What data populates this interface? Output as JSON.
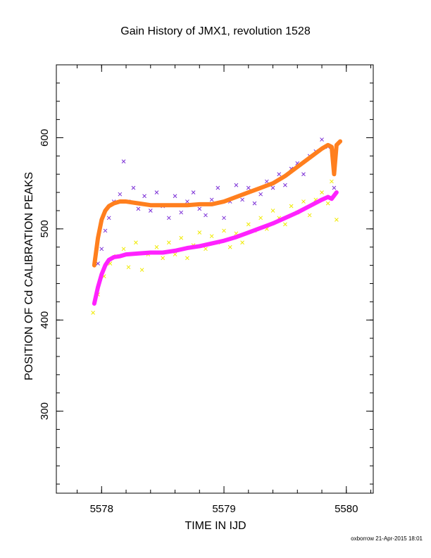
{
  "footer": "oxborrow 21-Apr-2015 18:01",
  "chart_data": {
    "type": "scatter",
    "title": "Gain History of JMX1, revolution 1528",
    "xlabel": "TIME IN IJD",
    "ylabel": "POSITION OF Cd CALIBRATION PEAKS",
    "xlim": [
      5577.63,
      5580.22
    ],
    "ylim": [
      210,
      680
    ],
    "x_ticks": [
      5578,
      5579,
      5580
    ],
    "y_ticks": [
      300,
      400,
      500,
      600
    ],
    "grid": false,
    "series": [
      {
        "marker": "x",
        "color": "#7b2fd6",
        "points": [
          [
            5577.97,
            462
          ],
          [
            5578.0,
            478
          ],
          [
            5578.03,
            498
          ],
          [
            5578.06,
            512
          ],
          [
            5578.1,
            530
          ],
          [
            5578.15,
            538
          ],
          [
            5578.18,
            574
          ],
          [
            5578.22,
            530
          ],
          [
            5578.26,
            545
          ],
          [
            5578.3,
            522
          ],
          [
            5578.35,
            536
          ],
          [
            5578.4,
            520
          ],
          [
            5578.45,
            540
          ],
          [
            5578.5,
            525
          ],
          [
            5578.55,
            512
          ],
          [
            5578.6,
            536
          ],
          [
            5578.65,
            518
          ],
          [
            5578.7,
            530
          ],
          [
            5578.75,
            540
          ],
          [
            5578.8,
            522
          ],
          [
            5578.85,
            515
          ],
          [
            5578.9,
            532
          ],
          [
            5578.95,
            545
          ],
          [
            5579.0,
            512
          ],
          [
            5579.05,
            530
          ],
          [
            5579.1,
            548
          ],
          [
            5579.15,
            532
          ],
          [
            5579.2,
            545
          ],
          [
            5579.25,
            528
          ],
          [
            5579.3,
            538
          ],
          [
            5579.35,
            552
          ],
          [
            5579.4,
            545
          ],
          [
            5579.45,
            560
          ],
          [
            5579.5,
            548
          ],
          [
            5579.55,
            566
          ],
          [
            5579.6,
            572
          ],
          [
            5579.65,
            560
          ],
          [
            5579.7,
            580
          ],
          [
            5579.75,
            585
          ],
          [
            5579.8,
            598
          ],
          [
            5579.85,
            590
          ],
          [
            5579.9,
            545
          ]
        ]
      },
      {
        "marker": "x",
        "color": "#f0ea00",
        "points": [
          [
            5577.93,
            408
          ],
          [
            5577.97,
            428
          ],
          [
            5578.02,
            448
          ],
          [
            5578.07,
            462
          ],
          [
            5578.12,
            470
          ],
          [
            5578.18,
            478
          ],
          [
            5578.22,
            458
          ],
          [
            5578.28,
            485
          ],
          [
            5578.33,
            455
          ],
          [
            5578.38,
            472
          ],
          [
            5578.45,
            480
          ],
          [
            5578.5,
            468
          ],
          [
            5578.55,
            485
          ],
          [
            5578.6,
            472
          ],
          [
            5578.65,
            490
          ],
          [
            5578.7,
            468
          ],
          [
            5578.75,
            482
          ],
          [
            5578.8,
            496
          ],
          [
            5578.85,
            478
          ],
          [
            5578.9,
            492
          ],
          [
            5578.95,
            485
          ],
          [
            5579.0,
            498
          ],
          [
            5579.05,
            480
          ],
          [
            5579.1,
            495
          ],
          [
            5579.15,
            485
          ],
          [
            5579.2,
            505
          ],
          [
            5579.25,
            498
          ],
          [
            5579.3,
            512
          ],
          [
            5579.35,
            500
          ],
          [
            5579.4,
            520
          ],
          [
            5579.45,
            512
          ],
          [
            5579.5,
            505
          ],
          [
            5579.55,
            525
          ],
          [
            5579.6,
            518
          ],
          [
            5579.65,
            530
          ],
          [
            5579.7,
            515
          ],
          [
            5579.75,
            532
          ],
          [
            5579.8,
            540
          ],
          [
            5579.85,
            528
          ],
          [
            5579.88,
            552
          ],
          [
            5579.92,
            510
          ]
        ]
      },
      {
        "marker": "line",
        "color": "#ff7f1e",
        "x": [
          5577.94,
          5577.97,
          5578.0,
          5578.03,
          5578.06,
          5578.1,
          5578.15,
          5578.2,
          5578.3,
          5578.4,
          5578.5,
          5578.6,
          5578.7,
          5578.8,
          5578.9,
          5579.0,
          5579.1,
          5579.2,
          5579.3,
          5579.4,
          5579.5,
          5579.6,
          5579.7,
          5579.8,
          5579.85,
          5579.88,
          5579.9,
          5579.92,
          5579.95
        ],
        "y": [
          460,
          490,
          510,
          520,
          525,
          528,
          530,
          530,
          528,
          526,
          526,
          526,
          526,
          527,
          527,
          530,
          535,
          540,
          545,
          550,
          558,
          568,
          578,
          588,
          592,
          590,
          560,
          592,
          596
        ]
      },
      {
        "marker": "line",
        "color": "#ff22ff",
        "x": [
          5577.94,
          5577.97,
          5578.0,
          5578.03,
          5578.06,
          5578.1,
          5578.15,
          5578.2,
          5578.3,
          5578.4,
          5578.5,
          5578.6,
          5578.7,
          5578.8,
          5578.9,
          5579.0,
          5579.1,
          5579.2,
          5579.3,
          5579.4,
          5579.5,
          5579.6,
          5579.7,
          5579.8,
          5579.85,
          5579.88,
          5579.92
        ],
        "y": [
          418,
          436,
          450,
          460,
          466,
          469,
          470,
          472,
          473,
          474,
          474,
          476,
          479,
          481,
          484,
          487,
          491,
          496,
          501,
          506,
          512,
          518,
          525,
          532,
          535,
          533,
          540
        ]
      }
    ]
  }
}
